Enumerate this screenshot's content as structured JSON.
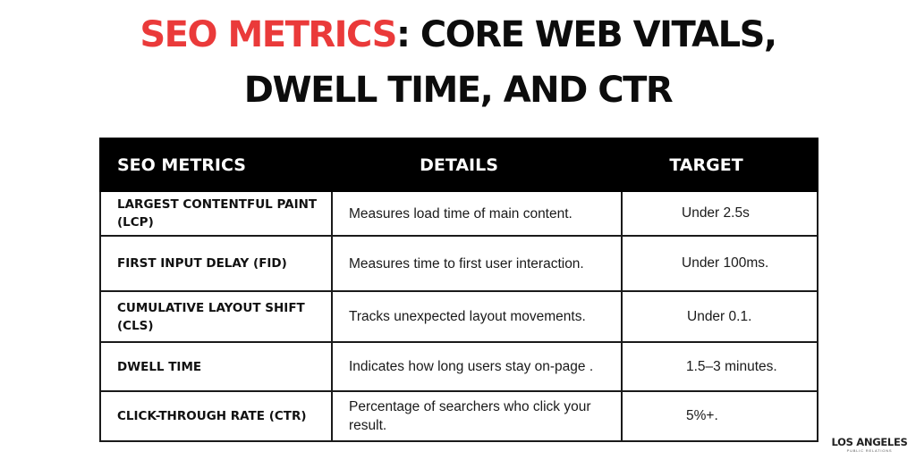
{
  "title": {
    "accent": "SEO METRICS",
    "line1_rest": ": CORE WEB VITALS,",
    "line2": "DWELL TIME, AND CTR"
  },
  "table": {
    "headers": {
      "metric": "SEO METRICS",
      "details": "DETAILS",
      "target": "TARGET"
    },
    "rows": [
      {
        "metric": "LARGEST CONTENTFUL PAINT (LCP)",
        "details": "Measures load time of main content.",
        "target": "Under 2.5s"
      },
      {
        "metric": "FIRST INPUT DELAY (FID)",
        "details": "Measures time to first user interaction.",
        "target": "Under 100ms."
      },
      {
        "metric": "CUMULATIVE LAYOUT SHIFT (CLS)",
        "details": "Tracks unexpected layout movements.",
        "target": "Under 0.1."
      },
      {
        "metric": "DWELL TIME",
        "details": "Indicates how long users stay on-page .",
        "target": "1.5–3 minutes."
      },
      {
        "metric": "CLICK-THROUGH RATE (CTR)",
        "details": "Percentage of searchers who click your result.",
        "target": "5%+."
      }
    ]
  },
  "logo": {
    "main": "LOS ANGELES",
    "sub": "PUBLIC RELATIONS"
  },
  "colors": {
    "accent": "#ea3a3a",
    "header_bg": "#000000",
    "text": "#0c0c0c"
  }
}
